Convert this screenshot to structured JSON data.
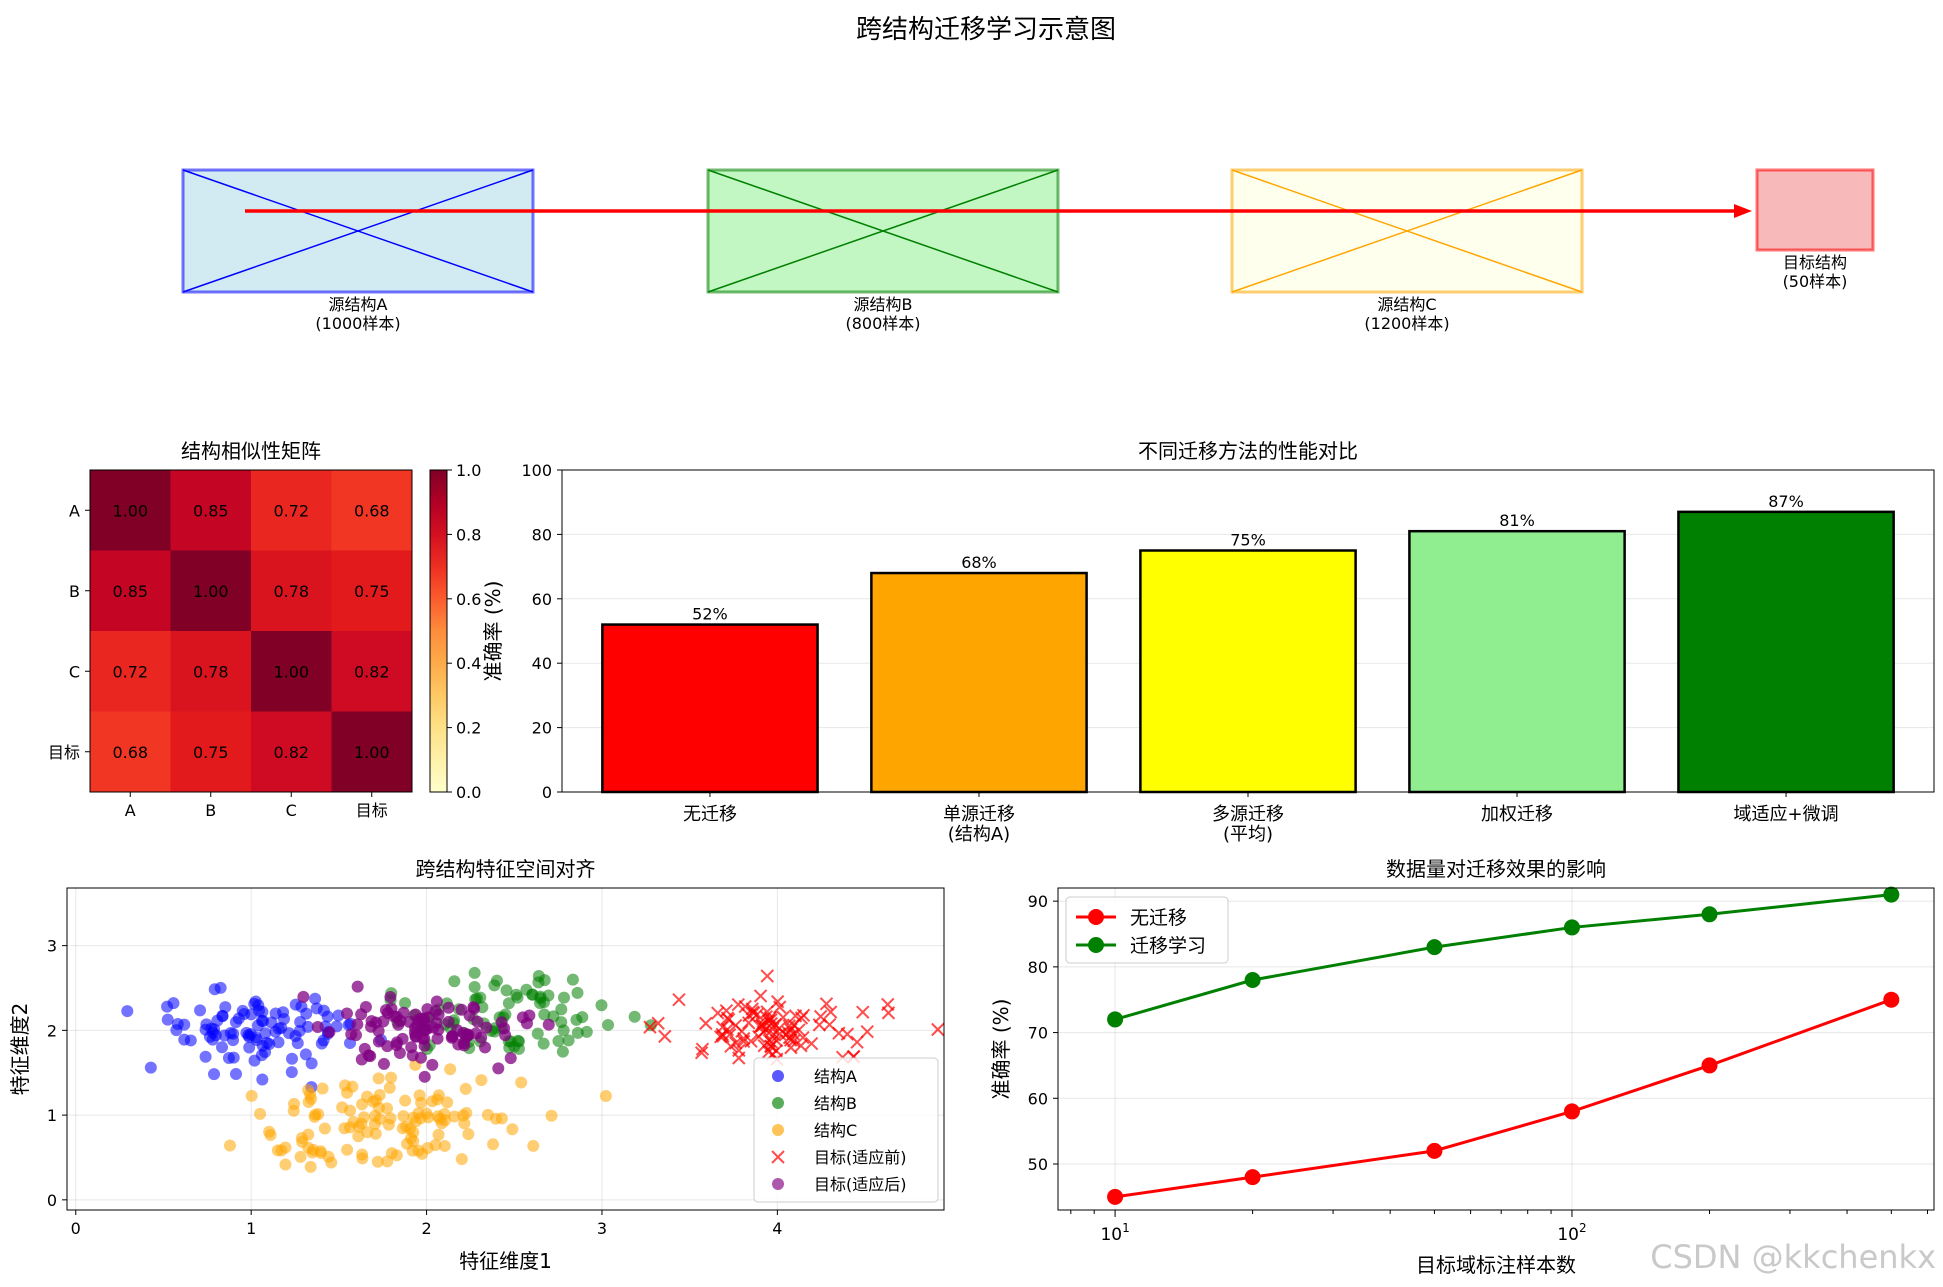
{
  "title": "跨结构迁移学习示意图",
  "watermark": "CSDN @kkchenkx",
  "chart_data": [
    {
      "type": "diagram",
      "boxes": [
        {
          "label": "源结构A",
          "sub": "(1000样本)",
          "color": "#add8e6",
          "edge": "#0000ff"
        },
        {
          "label": "源结构B",
          "sub": "(800样本)",
          "color": "#90ee90",
          "edge": "#008000"
        },
        {
          "label": "源结构C",
          "sub": "(1200样本)",
          "color": "#ffffe0",
          "edge": "#ffa500"
        },
        {
          "label": "目标结构",
          "sub": "(50样本)",
          "color": "#f08080",
          "edge": "#ff0000"
        }
      ]
    },
    {
      "type": "heatmap",
      "title": "结构相似性矩阵",
      "labels": [
        "A",
        "B",
        "C",
        "目标"
      ],
      "matrix": [
        [
          1.0,
          0.85,
          0.72,
          0.68
        ],
        [
          0.85,
          1.0,
          0.78,
          0.75
        ],
        [
          0.72,
          0.78,
          1.0,
          0.82
        ],
        [
          0.68,
          0.75,
          0.82,
          1.0
        ]
      ],
      "colorbar_ticks": [
        "0.0",
        "0.2",
        "0.4",
        "0.6",
        "0.8",
        "1.0"
      ],
      "colormap": "YlOrRd"
    },
    {
      "type": "bar",
      "title": "不同迁移方法的性能对比",
      "categories": [
        [
          "无迁移"
        ],
        [
          "单源迁移",
          "(结构A)"
        ],
        [
          "多源迁移",
          "(平均)"
        ],
        [
          "加权迁移"
        ],
        [
          "域适应+微调"
        ]
      ],
      "values": [
        52,
        68,
        75,
        81,
        87
      ],
      "value_labels": [
        "52%",
        "68%",
        "75%",
        "81%",
        "87%"
      ],
      "colors": [
        "#ff0000",
        "#ffa500",
        "#ffff00",
        "#90ee90",
        "#008000"
      ],
      "ylabel": "准确率 (%)",
      "ylim": [
        0,
        100
      ],
      "yticks": [
        0,
        20,
        40,
        60,
        80,
        100
      ]
    },
    {
      "type": "scatter",
      "title": "跨结构特征空间对齐",
      "xlabel": "特征维度1",
      "ylabel": "特征维度2",
      "xlim": [
        -0.05,
        4.95
      ],
      "ylim": [
        -0.12,
        3.68
      ],
      "xticks": [
        0,
        1,
        2,
        3,
        4
      ],
      "yticks": [
        0,
        1,
        2,
        3
      ],
      "legend_position": "lower right",
      "series": [
        {
          "name": "结构A",
          "color": "#0000ff",
          "marker": "o",
          "center": [
            1.0,
            2.0
          ],
          "spread": [
            0.3,
            0.25
          ],
          "n": 100
        },
        {
          "name": "结构B",
          "color": "#008000",
          "marker": "o",
          "center": [
            2.5,
            2.2
          ],
          "spread": [
            0.35,
            0.28
          ],
          "n": 80
        },
        {
          "name": "结构C",
          "color": "#ffa500",
          "marker": "o",
          "center": [
            1.8,
            0.9
          ],
          "spread": [
            0.35,
            0.3
          ],
          "n": 120
        },
        {
          "name": "目标(适应前)",
          "color": "#ff0000",
          "marker": "x",
          "center": [
            4.0,
            2.0
          ],
          "spread": [
            0.3,
            0.22
          ],
          "n": 100
        },
        {
          "name": "目标(适应后)",
          "color": "#800080",
          "marker": "o",
          "center": [
            2.0,
            2.0
          ],
          "spread": [
            0.3,
            0.22
          ],
          "n": 100
        }
      ]
    },
    {
      "type": "line",
      "title": "数据量对迁移效果的影响",
      "xlabel": "目标域标注样本数",
      "ylabel": "准确率 (%)",
      "xscale": "log",
      "x": [
        10,
        20,
        50,
        100,
        200,
        500
      ],
      "xlim": [
        7.5,
        620
      ],
      "ylim": [
        43,
        92
      ],
      "yticks": [
        50,
        60,
        70,
        80,
        90
      ],
      "legend_position": "upper left",
      "series": [
        {
          "name": "无迁移",
          "color": "#ff0000",
          "values": [
            45,
            48,
            52,
            58,
            65,
            75
          ]
        },
        {
          "name": "迁移学习",
          "color": "#008000",
          "values": [
            72,
            78,
            83,
            86,
            88,
            91
          ]
        }
      ]
    }
  ]
}
